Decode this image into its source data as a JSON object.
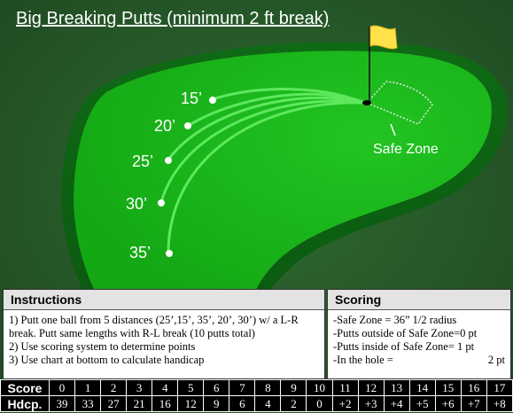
{
  "title": "Big Breaking Putts (minimum 2 ft break)",
  "distances": [
    "15’",
    "20’",
    "25’",
    "30’",
    "35’"
  ],
  "safe_zone_label": "Safe Zone",
  "colors": {
    "background": "#2a5b2d",
    "green": "#19b319",
    "flag": "#ffe24a"
  },
  "instructions": {
    "header": "Instructions",
    "lines": [
      "1) Putt one ball from 5 distances (25’,15’, 35’, 20’, 30’) w/ a L-R break. Putt same lengths with R-L break (10 putts total)",
      "2) Use scoring system to determine points",
      "3) Use chart at bottom to calculate handicap"
    ]
  },
  "scoring": {
    "header": "Scoring",
    "rows": [
      {
        "label": "-Safe Zone = 36” 1/2 radius",
        "value": ""
      },
      {
        "label": "-Putts outside of Safe Zone=0 pt",
        "value": ""
      },
      {
        "label": "-Putts inside of Safe Zone= 1 pt",
        "value": ""
      },
      {
        "label": "-In the hole =",
        "value": "2 pt"
      }
    ]
  },
  "handicap_table": {
    "score_label": "Score",
    "hdcp_label": "Hdcp.",
    "scores": [
      "0",
      "1",
      "2",
      "3",
      "4",
      "5",
      "6",
      "7",
      "8",
      "9",
      "10",
      "11",
      "12",
      "13",
      "14",
      "15",
      "16",
      "17"
    ],
    "handicaps": [
      "39",
      "33",
      "27",
      "21",
      "16",
      "12",
      "9",
      "6",
      "4",
      "2",
      "0",
      "+2",
      "+3",
      "+4",
      "+5",
      "+6",
      "+7",
      "+8"
    ]
  }
}
